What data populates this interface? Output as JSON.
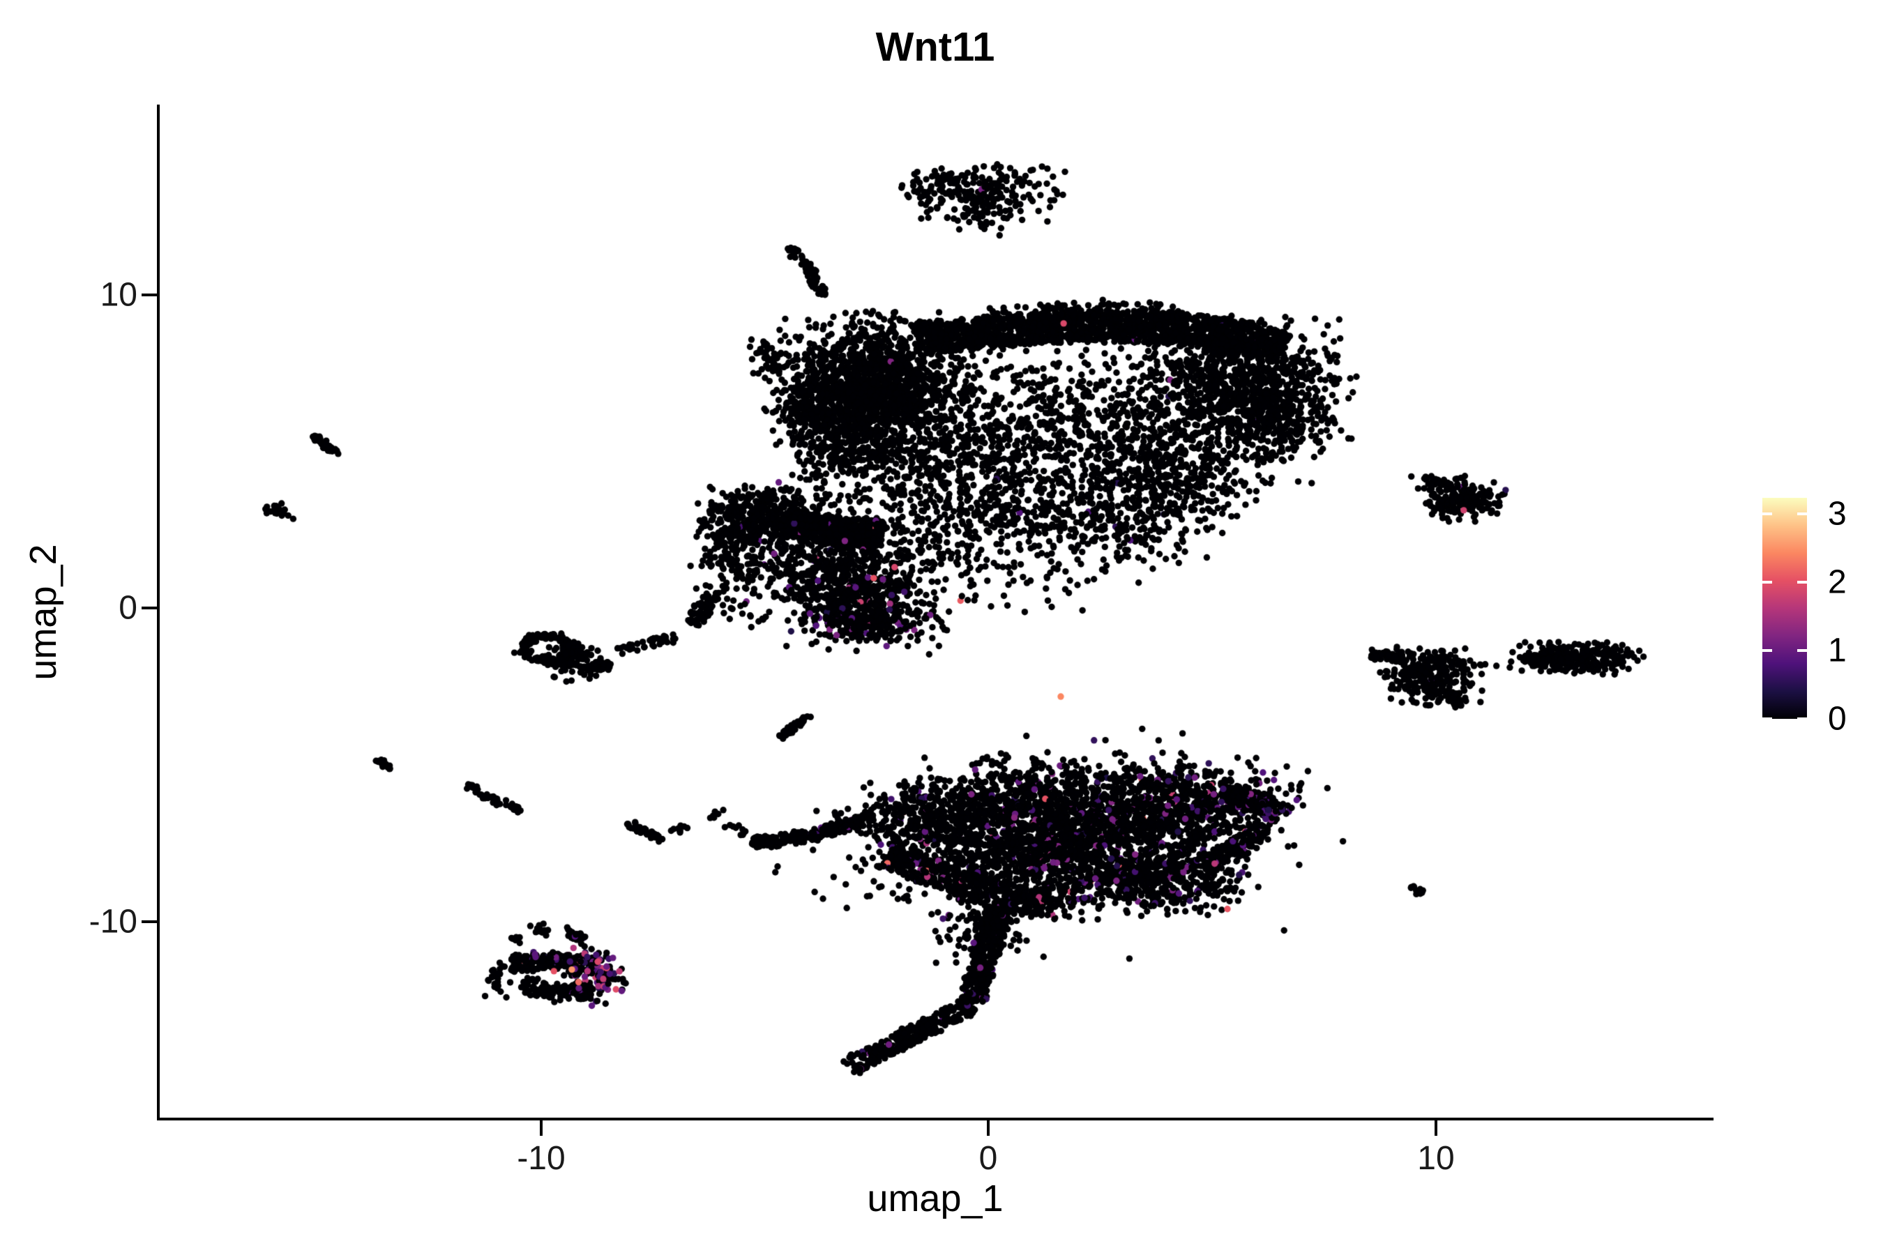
{
  "title": "Wnt11",
  "axes": {
    "x": {
      "label": "umap_1",
      "tick_labels": [
        "-10",
        "0",
        "10"
      ]
    },
    "y": {
      "label": "umap_2",
      "tick_labels": [
        "10",
        "0",
        "-10"
      ]
    }
  },
  "legend": {
    "tick_labels": [
      "3",
      "2",
      "1",
      "0"
    ],
    "tick_values": [
      3,
      2,
      1,
      0
    ]
  },
  "colors": {
    "background": "#ffffff",
    "axis_line": "#000000",
    "point_zero": "#000004",
    "legend_tick": "#ffffff"
  },
  "chart_data": {
    "type": "scatter",
    "title": "Wnt11",
    "xlabel": "umap_1",
    "ylabel": "umap_2",
    "x_tick_labels": [
      "-10",
      "0",
      "10"
    ],
    "x_tick_values": [
      -10,
      0,
      10
    ],
    "y_tick_labels": [
      "10",
      "0",
      "-10"
    ],
    "y_tick_values": [
      10,
      0,
      -10
    ],
    "x_range": [
      -18.6,
      16.2
    ],
    "y_range": [
      -16.3,
      16.1
    ],
    "grid": false,
    "legend_position": "right",
    "point_radius_px": 4.7,
    "seed": 42,
    "colorbar": {
      "tick_labels": [
        "3",
        "2",
        "1",
        "0"
      ],
      "tick_values": [
        3,
        2,
        1,
        0
      ],
      "vmax": 3.2,
      "palette": "magma",
      "stops": [
        "#000004",
        "#1c1044",
        "#4f127b",
        "#812581",
        "#b5367a",
        "#e55064",
        "#fb8761",
        "#fec287",
        "#fcfdbf"
      ]
    },
    "clusters": [
      {
        "name": "islet-top-left",
        "shape": "blob",
        "cx": -0.9,
        "cy": 13.4,
        "sx": 0.55,
        "sy": 0.42,
        "n": 100
      },
      {
        "name": "islet-top-right",
        "shape": "blob",
        "cx": 0.35,
        "cy": 13.3,
        "sx": 0.6,
        "sy": 0.45,
        "n": 110,
        "p_dim": 0.01
      },
      {
        "name": "islet-top-lower",
        "shape": "blob",
        "cx": -0.1,
        "cy": 12.5,
        "sx": 0.55,
        "sy": 0.28,
        "n": 45
      },
      {
        "name": "streak-upper-left",
        "shape": "path",
        "pts": [
          [
            -4.45,
            11.55
          ],
          [
            -3.95,
            10.75
          ],
          [
            -3.7,
            9.95
          ]
        ],
        "w": 0.1,
        "n": 70
      },
      {
        "name": "blob-left-of-main",
        "shape": "blob",
        "cx": -4.95,
        "cy": 7.9,
        "sx": 0.2,
        "sy": 0.33,
        "n": 40
      },
      {
        "name": "main-dense-left-blob",
        "shape": "blob",
        "cx": -2.55,
        "cy": 7.1,
        "sx": 0.95,
        "sy": 1.0,
        "n": 1500,
        "p_dim": 0.003
      },
      {
        "name": "main-top-arc",
        "shape": "path",
        "pts": [
          [
            -1.6,
            8.6
          ],
          [
            0.3,
            8.85
          ],
          [
            2.2,
            9.0
          ],
          [
            4.2,
            8.95
          ],
          [
            5.9,
            8.6
          ],
          [
            6.6,
            8.3
          ]
        ],
        "w": 0.5,
        "n": 1600,
        "p_dim": 0.004,
        "p_hot": 0.001
      },
      {
        "name": "main-top-fringe",
        "shape": "path",
        "pts": [
          [
            0.0,
            9.35
          ],
          [
            2.2,
            9.6
          ],
          [
            4.4,
            9.45
          ]
        ],
        "w": 0.22,
        "n": 90
      },
      {
        "name": "main-right-mass",
        "shape": "blob",
        "cx": 5.6,
        "cy": 7.2,
        "sx": 1.1,
        "sy": 0.9,
        "n": 800,
        "p_dim": 0.004
      },
      {
        "name": "main-right-cheek",
        "shape": "blob",
        "cx": 6.35,
        "cy": 5.9,
        "sx": 0.6,
        "sy": 0.8,
        "n": 250
      },
      {
        "name": "main-mid-1",
        "shape": "blob",
        "cx": 0.6,
        "cy": 5.6,
        "sx": 1.7,
        "sy": 1.4,
        "n": 520,
        "p_dim": 0.004
      },
      {
        "name": "main-mid-2",
        "shape": "blob",
        "cx": 2.9,
        "cy": 5.3,
        "sx": 1.3,
        "sy": 1.3,
        "n": 430,
        "p_dim": 0.004,
        "p_hot": 0.001
      },
      {
        "name": "main-mid-3",
        "shape": "blob",
        "cx": 4.3,
        "cy": 4.4,
        "sx": 0.8,
        "sy": 1.0,
        "n": 300
      },
      {
        "name": "main-mid-4",
        "shape": "blob",
        "cx": -1.3,
        "cy": 4.2,
        "sx": 1.1,
        "sy": 1.1,
        "n": 300
      },
      {
        "name": "main-lower-1",
        "shape": "blob",
        "cx": 0.6,
        "cy": 3.0,
        "sx": 1.3,
        "sy": 0.75,
        "n": 240,
        "p_dim": 0.006
      },
      {
        "name": "main-lower-2",
        "shape": "blob",
        "cx": 2.9,
        "cy": 2.6,
        "sx": 1.0,
        "sy": 0.6,
        "n": 160,
        "p_dim": 0.01,
        "p_hot": 0.004
      },
      {
        "name": "main-left-lower",
        "shape": "blob",
        "cx": -3.3,
        "cy": 5.2,
        "sx": 0.6,
        "sy": 0.8,
        "n": 220
      },
      {
        "name": "main-left-protrusion",
        "shape": "blob",
        "cx": -4.2,
        "cy": 6.3,
        "sx": 0.35,
        "sy": 0.5,
        "n": 90
      },
      {
        "name": "main-below-sparse",
        "shape": "blob",
        "cx": -1.2,
        "cy": 1.7,
        "sx": 1.2,
        "sy": 0.7,
        "n": 90
      },
      {
        "name": "main-below-sparse-2",
        "shape": "blob",
        "cx": 1.5,
        "cy": 1.4,
        "sx": 1.2,
        "sy": 0.7,
        "n": 55
      },
      {
        "name": "midleft-dense",
        "shape": "blob",
        "cx": -5.0,
        "cy": 2.95,
        "sx": 0.7,
        "sy": 0.5,
        "n": 420,
        "p_dim": 0.01
      },
      {
        "name": "midleft-band",
        "shape": "path",
        "pts": [
          [
            -4.4,
            2.7
          ],
          [
            -3.3,
            2.45
          ],
          [
            -2.4,
            2.3
          ]
        ],
        "w": 0.45,
        "n": 420,
        "p_dim": 0.01,
        "p_hot": 0.002
      },
      {
        "name": "midleft-body",
        "shape": "blob",
        "cx": -3.4,
        "cy": 1.1,
        "sx": 0.95,
        "sy": 0.75,
        "n": 520,
        "p_dim": 0.035,
        "p_hot": 0.006
      },
      {
        "name": "midleft-lower",
        "shape": "blob",
        "cx": -2.55,
        "cy": -0.05,
        "sx": 0.85,
        "sy": 0.6,
        "n": 330,
        "p_dim": 0.05,
        "p_hot": 0.01
      },
      {
        "name": "midleft-v-wedge",
        "shape": "blob",
        "cx": -3.0,
        "cy": -0.45,
        "sx": 0.45,
        "sy": 0.35,
        "n": 120,
        "p_dim": 0.06,
        "p_hot": 0.01
      },
      {
        "name": "midleft-west-edge",
        "shape": "blob",
        "cx": -5.6,
        "cy": 1.6,
        "sx": 0.45,
        "sy": 0.9,
        "n": 160
      },
      {
        "name": "midleft-bridge",
        "shape": "path",
        "pts": [
          [
            -6.2,
            0.4
          ],
          [
            -6.6,
            -0.5
          ]
        ],
        "w": 0.2,
        "n": 60
      },
      {
        "name": "trail-to-ring",
        "shape": "path",
        "pts": [
          [
            -6.9,
            -0.9
          ],
          [
            -8.3,
            -1.4
          ]
        ],
        "w": 0.12,
        "n": 40
      },
      {
        "name": "ring-cluster",
        "shape": "ring",
        "cx": -9.85,
        "cy": -1.3,
        "rx": 0.55,
        "ry": 0.42,
        "w": 0.14,
        "n": 150
      },
      {
        "name": "ring-east-lobe",
        "shape": "blob",
        "cx": -9.2,
        "cy": -1.7,
        "sx": 0.35,
        "sy": 0.3,
        "n": 110
      },
      {
        "name": "ring-stub",
        "shape": "path",
        "pts": [
          [
            -8.75,
            -1.75
          ],
          [
            -8.45,
            -1.9
          ]
        ],
        "w": 0.12,
        "n": 25
      },
      {
        "name": "dash-far-west-1",
        "shape": "path",
        "pts": [
          [
            -15.05,
            5.5
          ],
          [
            -14.55,
            4.95
          ]
        ],
        "w": 0.07,
        "n": 35
      },
      {
        "name": "dash-far-west-2",
        "shape": "blob",
        "cx": -15.9,
        "cy": 3.1,
        "sx": 0.16,
        "sy": 0.12,
        "n": 22
      },
      {
        "name": "dash-west-low-1",
        "shape": "path",
        "pts": [
          [
            -13.6,
            -4.85
          ],
          [
            -13.3,
            -5.15
          ]
        ],
        "w": 0.07,
        "n": 18
      },
      {
        "name": "dash-west-low-2",
        "shape": "path",
        "pts": [
          [
            -11.6,
            -5.7
          ],
          [
            -10.45,
            -6.5
          ]
        ],
        "w": 0.09,
        "n": 60
      },
      {
        "name": "dash-mid-low-1",
        "shape": "path",
        "pts": [
          [
            -8.05,
            -6.9
          ],
          [
            -7.3,
            -7.35
          ]
        ],
        "w": 0.1,
        "n": 40
      },
      {
        "name": "dash-mid-low-2",
        "shape": "blob",
        "cx": -6.85,
        "cy": -7.1,
        "sx": 0.12,
        "sy": 0.08,
        "n": 10
      },
      {
        "name": "dash-mid-low-3",
        "shape": "blob",
        "cx": -6.05,
        "cy": -6.55,
        "sx": 0.1,
        "sy": 0.08,
        "n": 7
      },
      {
        "name": "dash-mid-low-4",
        "shape": "path",
        "pts": [
          [
            -5.9,
            -6.9
          ],
          [
            -5.45,
            -7.2
          ]
        ],
        "w": 0.1,
        "n": 10
      },
      {
        "name": "streak-center",
        "shape": "path",
        "pts": [
          [
            -4.65,
            -4.15
          ],
          [
            -4.05,
            -3.45
          ]
        ],
        "w": 0.07,
        "n": 45
      },
      {
        "name": "bottom-left-arm",
        "shape": "path",
        "pts": [
          [
            -5.25,
            -7.5
          ],
          [
            -4.3,
            -7.35
          ],
          [
            -3.3,
            -7.0
          ],
          [
            -2.6,
            -6.7
          ]
        ],
        "w": 0.18,
        "n": 200,
        "p_dim": 0.02
      },
      {
        "name": "bottom-left-wedge",
        "shape": "blob",
        "cx": -1.4,
        "cy": -6.9,
        "sx": 0.9,
        "sy": 0.65,
        "n": 380,
        "p_dim": 0.03,
        "p_hot": 0.004
      },
      {
        "name": "bottom-upper-1",
        "shape": "blob",
        "cx": 0.6,
        "cy": -6.4,
        "sx": 1.1,
        "sy": 0.75,
        "n": 550,
        "p_dim": 0.05,
        "p_hot": 0.008
      },
      {
        "name": "bottom-main-dense",
        "shape": "blob",
        "cx": 2.8,
        "cy": -6.6,
        "sx": 1.3,
        "sy": 0.85,
        "n": 900,
        "p_dim": 0.07,
        "p_hot": 0.01
      },
      {
        "name": "bottom-upper-right",
        "shape": "blob",
        "cx": 4.9,
        "cy": -6.3,
        "sx": 0.9,
        "sy": 0.6,
        "n": 420,
        "p_dim": 0.1,
        "p_hot": 0.012
      },
      {
        "name": "bottom-right-tip",
        "shape": "path",
        "pts": [
          [
            5.5,
            -5.9
          ],
          [
            6.1,
            -6.2
          ],
          [
            6.45,
            -6.6
          ]
        ],
        "w": 0.28,
        "n": 170,
        "p_dim": 0.12,
        "p_hot": 0.01
      },
      {
        "name": "bottom-right-lower-edge",
        "shape": "path",
        "pts": [
          [
            6.2,
            -7.0
          ],
          [
            5.5,
            -7.7
          ],
          [
            4.8,
            -8.2
          ]
        ],
        "w": 0.25,
        "n": 160,
        "p_dim": 0.08
      },
      {
        "name": "bottom-lower-band",
        "shape": "blob",
        "cx": 1.6,
        "cy": -8.3,
        "sx": 1.8,
        "sy": 0.7,
        "n": 850,
        "p_dim": 0.05,
        "p_hot": 0.008
      },
      {
        "name": "bottom-sw-edge",
        "shape": "path",
        "pts": [
          [
            -2.3,
            -7.9
          ],
          [
            -1.0,
            -8.6
          ],
          [
            0.3,
            -9.2
          ],
          [
            1.6,
            -9.5
          ]
        ],
        "w": 0.4,
        "n": 420,
        "p_dim": 0.04,
        "p_hot": 0.006
      },
      {
        "name": "bottom-lower-right",
        "shape": "blob",
        "cx": 3.9,
        "cy": -8.7,
        "sx": 0.9,
        "sy": 0.5,
        "n": 300,
        "p_dim": 0.08,
        "p_hot": 0.008
      },
      {
        "name": "bottom-halo",
        "shape": "blob",
        "cx": 1.5,
        "cy": -7.4,
        "sx": 2.8,
        "sy": 1.6,
        "n": 220,
        "p_dim": 0.03
      },
      {
        "name": "tail",
        "shape": "path",
        "pts": [
          [
            0.3,
            -9.6
          ],
          [
            0.05,
            -10.6
          ],
          [
            -0.2,
            -11.6
          ],
          [
            -0.35,
            -12.6
          ]
        ],
        "w": 0.28,
        "n": 360,
        "p_dim": 0.02
      },
      {
        "name": "tail-top-widen",
        "shape": "blob",
        "cx": -0.3,
        "cy": -10.3,
        "sx": 0.5,
        "sy": 0.5,
        "n": 80,
        "p_dim": 0.02
      },
      {
        "name": "foot",
        "shape": "path",
        "pts": [
          [
            -0.4,
            -12.7
          ],
          [
            -1.4,
            -13.4
          ],
          [
            -2.4,
            -14.15
          ],
          [
            -3.1,
            -14.65
          ]
        ],
        "w": 0.28,
        "n": 300,
        "p_dim": 0.01
      },
      {
        "name": "swisland-top-band",
        "shape": "path",
        "pts": [
          [
            -10.65,
            -11.35
          ],
          [
            -9.6,
            -11.25
          ],
          [
            -9.0,
            -11.5
          ]
        ],
        "w": 0.28,
        "n": 170,
        "p_dim": 0.06,
        "p_hot": 0.02
      },
      {
        "name": "swisland-bottom-arc",
        "shape": "path",
        "pts": [
          [
            -10.4,
            -12.0
          ],
          [
            -9.5,
            -12.35
          ],
          [
            -8.85,
            -12.2
          ]
        ],
        "w": 0.25,
        "n": 130,
        "p_dim": 0.03
      },
      {
        "name": "swisland-colored-lobe",
        "shape": "blob",
        "cx": -8.8,
        "cy": -11.7,
        "sx": 0.3,
        "sy": 0.45,
        "n": 120,
        "p_dim": 0.3,
        "p_hot": 0.12
      },
      {
        "name": "swisland-top-stub",
        "shape": "path",
        "pts": [
          [
            -9.45,
            -10.35
          ],
          [
            -9.05,
            -10.55
          ]
        ],
        "w": 0.12,
        "n": 40,
        "p_dim": 0.1
      },
      {
        "name": "swisland-top-dots",
        "shape": "blob",
        "cx": -10.0,
        "cy": -10.3,
        "sx": 0.1,
        "sy": 0.12,
        "n": 12
      },
      {
        "name": "swisland-top-dot2",
        "shape": "blob",
        "cx": -10.55,
        "cy": -10.6,
        "sx": 0.08,
        "sy": 0.08,
        "n": 6
      },
      {
        "name": "swisland-west-strays",
        "shape": "blob",
        "cx": -10.9,
        "cy": -11.9,
        "sx": 0.15,
        "sy": 0.3,
        "n": 25
      },
      {
        "name": "east-thin-line",
        "shape": "path",
        "pts": [
          [
            8.55,
            -1.5
          ],
          [
            9.3,
            -1.6
          ]
        ],
        "w": 0.12,
        "n": 70
      },
      {
        "name": "east-main",
        "shape": "blob",
        "cx": 9.85,
        "cy": -2.2,
        "sx": 0.5,
        "sy": 0.4,
        "n": 280,
        "p_dim": 0.004
      },
      {
        "name": "east-bottom-tip",
        "shape": "path",
        "pts": [
          [
            10.2,
            -2.7
          ],
          [
            10.55,
            -3.05
          ]
        ],
        "w": 0.15,
        "n": 50
      },
      {
        "name": "east-dotted-trail",
        "shape": "dots",
        "pts": [
          [
            10.85,
            -1.85
          ],
          [
            11.1,
            -1.8
          ],
          [
            11.35,
            -1.85
          ],
          [
            11.65,
            -1.9
          ]
        ]
      },
      {
        "name": "far-east-cluster",
        "shape": "blob",
        "cx": 13.15,
        "cy": -1.6,
        "sx": 0.62,
        "sy": 0.22,
        "n": 300
      },
      {
        "name": "far-east-taper",
        "shape": "path",
        "pts": [
          [
            12.1,
            -1.75
          ],
          [
            12.55,
            -1.65
          ]
        ],
        "w": 0.1,
        "n": 30
      },
      {
        "name": "east-dash-low",
        "shape": "path",
        "pts": [
          [
            9.4,
            -8.8
          ],
          [
            9.7,
            -9.1
          ]
        ],
        "w": 0.07,
        "n": 14
      },
      {
        "name": "ne-satellite",
        "shape": "blob",
        "cx": 10.6,
        "cy": 3.5,
        "sx": 0.42,
        "sy": 0.32,
        "n": 190,
        "p_dim": 0.01
      },
      {
        "name": "ne-satellite-arm",
        "shape": "path",
        "pts": [
          [
            9.8,
            4.15
          ],
          [
            10.3,
            3.9
          ]
        ],
        "w": 0.1,
        "n": 30
      },
      {
        "name": "ne-satellite-dot",
        "shape": "dots",
        "pts": [
          [
            9.45,
            4.2
          ]
        ]
      }
    ],
    "highlight_points": [
      {
        "x": 1.62,
        "y": -2.83,
        "v": 2.4
      },
      {
        "x": 10.62,
        "y": 3.12,
        "v": 1.8
      },
      {
        "x": -9.3,
        "y": -11.55,
        "v": 2.5
      },
      {
        "x": -9.15,
        "y": -11.95,
        "v": 2.2
      },
      {
        "x": -9.7,
        "y": -11.6,
        "v": 2.0
      },
      {
        "x": -8.72,
        "y": -11.3,
        "v": 1.9
      },
      {
        "x": -8.6,
        "y": -11.85,
        "v": 1.7
      },
      {
        "x": -8.95,
        "y": -11.6,
        "v": 1.6
      }
    ]
  }
}
